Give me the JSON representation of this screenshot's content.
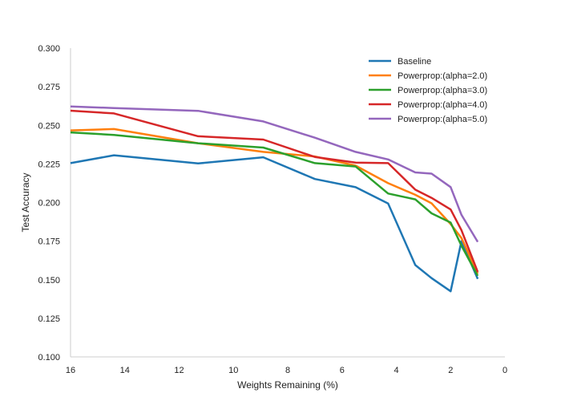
{
  "chart_data": {
    "type": "line",
    "xlabel": "Weights Remaining (%)",
    "ylabel": "Test Accuracy",
    "xlim": [
      16,
      0
    ],
    "ylim": [
      0.1,
      0.3
    ],
    "x_reversed": true,
    "x_ticks": [
      16,
      14,
      12,
      10,
      8,
      6,
      4,
      2,
      0
    ],
    "x_tick_labels": [
      "16",
      "14",
      "12",
      "10",
      "8",
      "6",
      "4",
      "2",
      "0"
    ],
    "y_ticks": [
      0.1,
      0.125,
      0.15,
      0.175,
      0.2,
      0.225,
      0.25,
      0.275,
      0.3
    ],
    "y_tick_labels": [
      "0.100",
      "0.125",
      "0.150",
      "0.175",
      "0.200",
      "0.225",
      "0.250",
      "0.275",
      "0.300"
    ],
    "grid": false,
    "legend_position": "top-right",
    "x": [
      16.0,
      14.4,
      11.3,
      8.9,
      7.0,
      5.5,
      4.3,
      3.3,
      2.7,
      2.0,
      1.6,
      1.0
    ],
    "series": [
      {
        "name": "Baseline",
        "color": "#1f77b4",
        "values": [
          0.2255,
          0.2306,
          0.2253,
          0.2293,
          0.2152,
          0.2099,
          0.1993,
          0.1595,
          0.151,
          0.1425,
          0.175,
          0.1505
        ]
      },
      {
        "name": "Powerprop:(alpha=2.0)",
        "color": "#ff7f0e",
        "values": [
          0.2467,
          0.2476,
          0.2384,
          0.2328,
          0.2298,
          0.2239,
          0.2125,
          0.205,
          0.1995,
          0.186,
          0.177,
          0.154
        ]
      },
      {
        "name": "Powerprop:(alpha=3.0)",
        "color": "#2ca02c",
        "values": [
          0.2454,
          0.2438,
          0.2384,
          0.2356,
          0.2255,
          0.2233,
          0.2058,
          0.202,
          0.193,
          0.187,
          0.172,
          0.1525
        ]
      },
      {
        "name": "Powerprop:(alpha=4.0)",
        "color": "#d62728",
        "values": [
          0.2595,
          0.2577,
          0.2429,
          0.2408,
          0.2295,
          0.2258,
          0.2255,
          0.2083,
          0.203,
          0.1955,
          0.182,
          0.155
        ]
      },
      {
        "name": "Powerprop:(alpha=5.0)",
        "color": "#9467bd",
        "values": [
          0.2622,
          0.2612,
          0.2594,
          0.2525,
          0.242,
          0.2328,
          0.2279,
          0.2195,
          0.2187,
          0.21,
          0.192,
          0.1745
        ]
      }
    ]
  }
}
